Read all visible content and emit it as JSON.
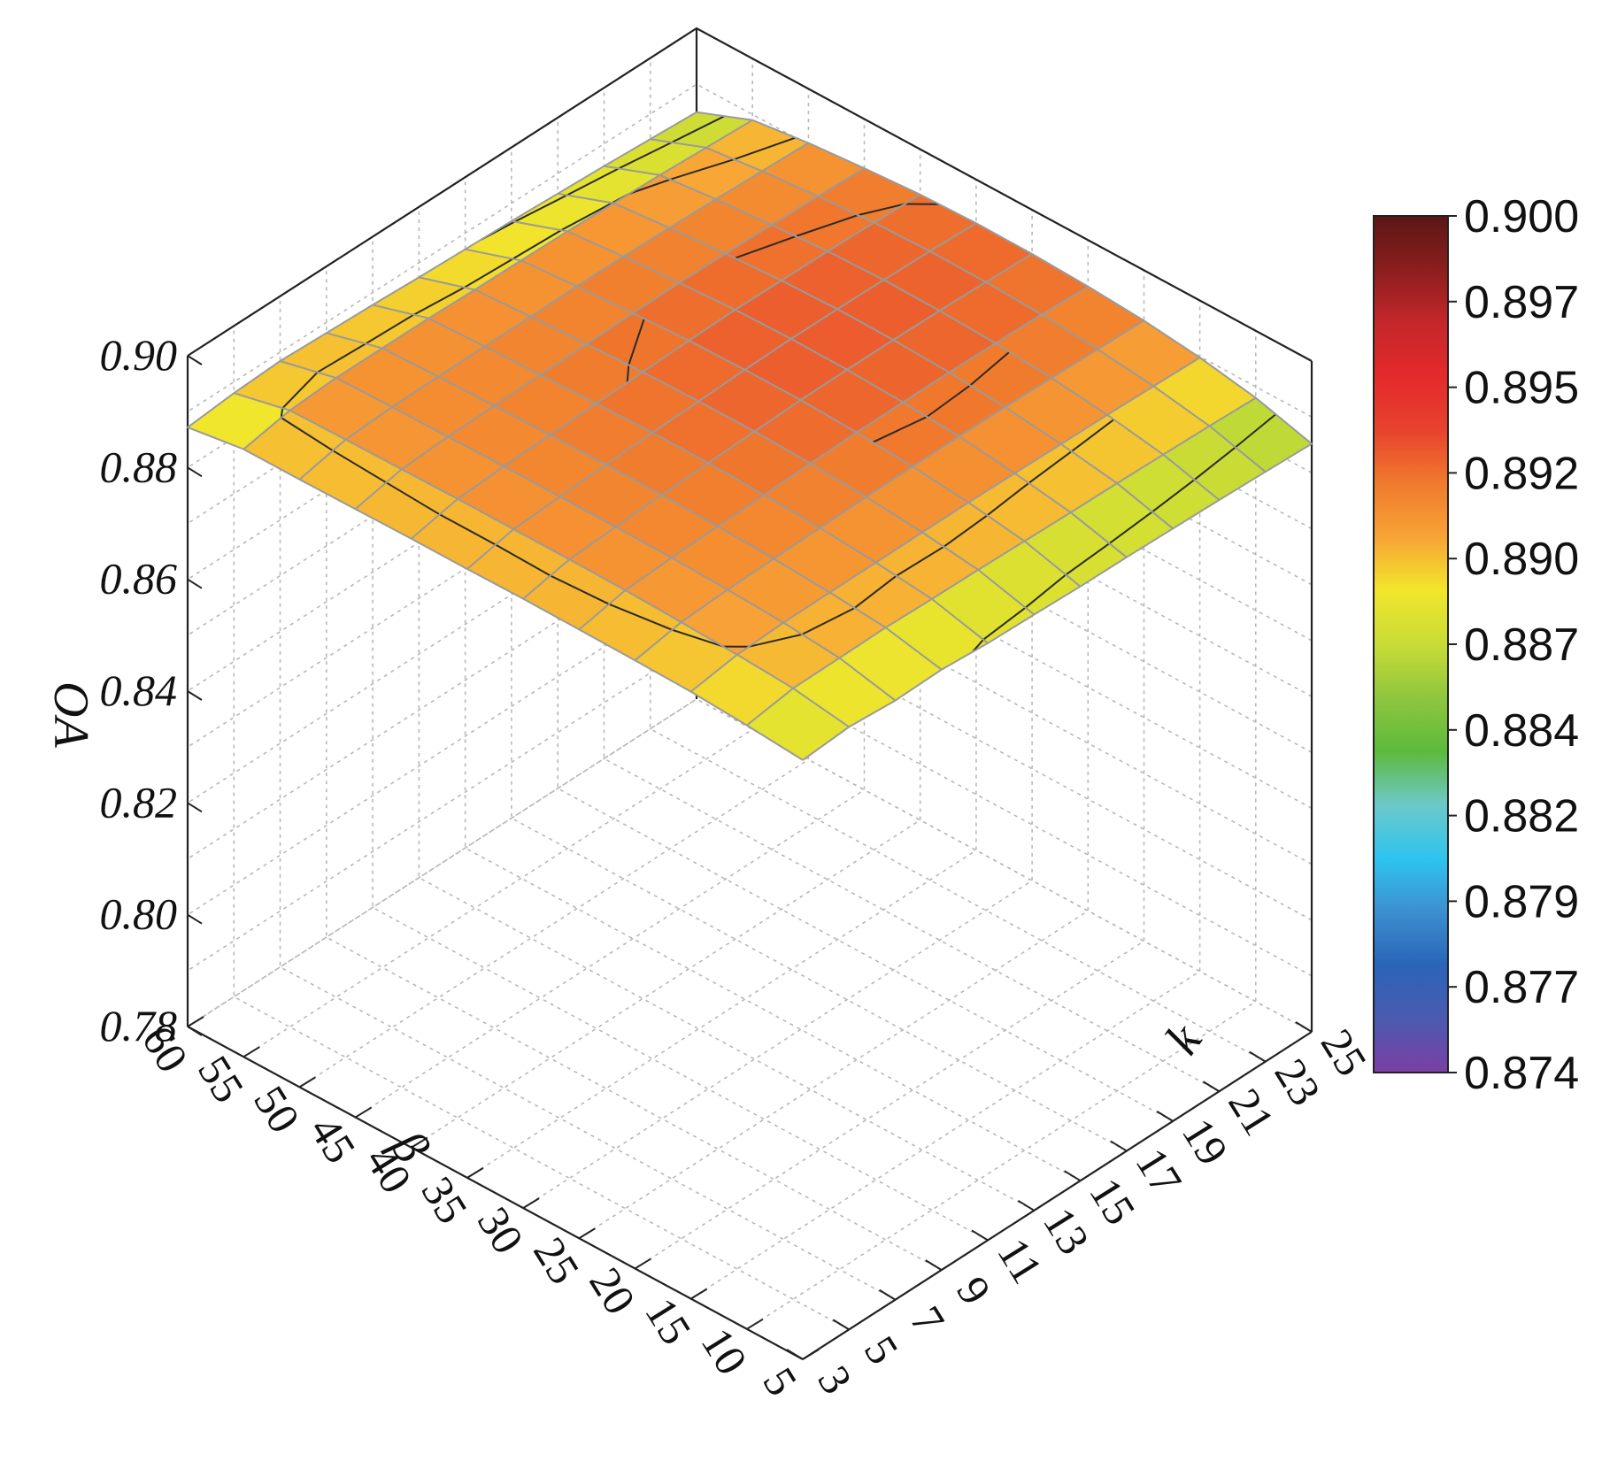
{
  "chart_data": {
    "type": "surface3d",
    "title": "",
    "xlabel": "β",
    "ylabel": "k",
    "zlabel": "OA",
    "x_ticks": [
      "60",
      "55",
      "50",
      "45",
      "40",
      "35",
      "30",
      "25",
      "20",
      "15",
      "10",
      "5"
    ],
    "y_ticks": [
      "3",
      "5",
      "7",
      "9",
      "11",
      "13",
      "15",
      "17",
      "19",
      "21",
      "23",
      "25"
    ],
    "z_ticks": [
      "0.78",
      "0.80",
      "0.82",
      "0.84",
      "0.86",
      "0.88",
      "0.90"
    ],
    "xlim": [
      5,
      60
    ],
    "ylim": [
      3,
      25
    ],
    "zlim": [
      0.78,
      0.9
    ],
    "x_values": [
      5,
      10,
      15,
      20,
      25,
      30,
      35,
      40,
      45,
      50,
      55,
      60
    ],
    "y_values": [
      3,
      5,
      7,
      9,
      11,
      13,
      15,
      17,
      19,
      21,
      23,
      25
    ],
    "z_values": [
      [
        0.8872,
        0.888,
        0.8886,
        0.8888,
        0.8889,
        0.889,
        0.8889,
        0.8889,
        0.8888,
        0.8887,
        0.8887,
        0.8872
      ],
      [
        0.8878,
        0.8893,
        0.8899,
        0.8903,
        0.8906,
        0.8907,
        0.8907,
        0.8907,
        0.8906,
        0.8905,
        0.8903,
        0.888
      ],
      [
        0.8872,
        0.8894,
        0.8903,
        0.8908,
        0.8911,
        0.8912,
        0.8912,
        0.8912,
        0.8911,
        0.891,
        0.8908,
        0.8884
      ],
      [
        0.8874,
        0.8895,
        0.8904,
        0.891,
        0.8914,
        0.8916,
        0.8916,
        0.8915,
        0.8913,
        0.8911,
        0.8908,
        0.8881
      ],
      [
        0.8868,
        0.8893,
        0.8904,
        0.8912,
        0.8917,
        0.892,
        0.892,
        0.8918,
        0.8915,
        0.8912,
        0.8908,
        0.8878
      ],
      [
        0.8866,
        0.8892,
        0.8905,
        0.8914,
        0.892,
        0.8923,
        0.8923,
        0.8921,
        0.8917,
        0.8912,
        0.8906,
        0.8874
      ],
      [
        0.8863,
        0.889,
        0.8905,
        0.8915,
        0.8922,
        0.8926,
        0.8926,
        0.8924,
        0.8919,
        0.8913,
        0.8905,
        0.8871
      ],
      [
        0.8862,
        0.8888,
        0.8904,
        0.8916,
        0.8923,
        0.8927,
        0.8928,
        0.8926,
        0.892,
        0.8913,
        0.8904,
        0.8868
      ],
      [
        0.886,
        0.8887,
        0.8903,
        0.8915,
        0.8923,
        0.8927,
        0.8928,
        0.8925,
        0.8919,
        0.8911,
        0.8901,
        0.8864
      ],
      [
        0.8858,
        0.8885,
        0.8902,
        0.8914,
        0.8922,
        0.8926,
        0.8927,
        0.8924,
        0.8917,
        0.8909,
        0.8898,
        0.886
      ],
      [
        0.8855,
        0.8883,
        0.89,
        0.8912,
        0.892,
        0.8924,
        0.8925,
        0.8922,
        0.8915,
        0.8906,
        0.8894,
        0.8855
      ],
      [
        0.8852,
        0.888,
        0.8898,
        0.891,
        0.8917,
        0.8921,
        0.8922,
        0.8919,
        0.8912,
        0.8903,
        0.889,
        0.885
      ]
    ],
    "colorbar": {
      "ticks": [
        "0.900",
        "0.897",
        "0.895",
        "0.892",
        "0.890",
        "0.887",
        "0.884",
        "0.882",
        "0.879",
        "0.877",
        "0.874"
      ],
      "range": [
        0.874,
        0.9
      ],
      "colors": [
        "#7b3fa5",
        "#4a5bb0",
        "#2a64b8",
        "#3c8fd0",
        "#2ec4ef",
        "#6dc8c8",
        "#5dba3c",
        "#8fc63e",
        "#c8dc36",
        "#f2e62c",
        "#f8a336",
        "#f07a2d",
        "#e8422e",
        "#e42a2b",
        "#c4272b",
        "#8b1e1e",
        "#5a1715"
      ]
    },
    "grid": true,
    "contour_lines": true
  }
}
